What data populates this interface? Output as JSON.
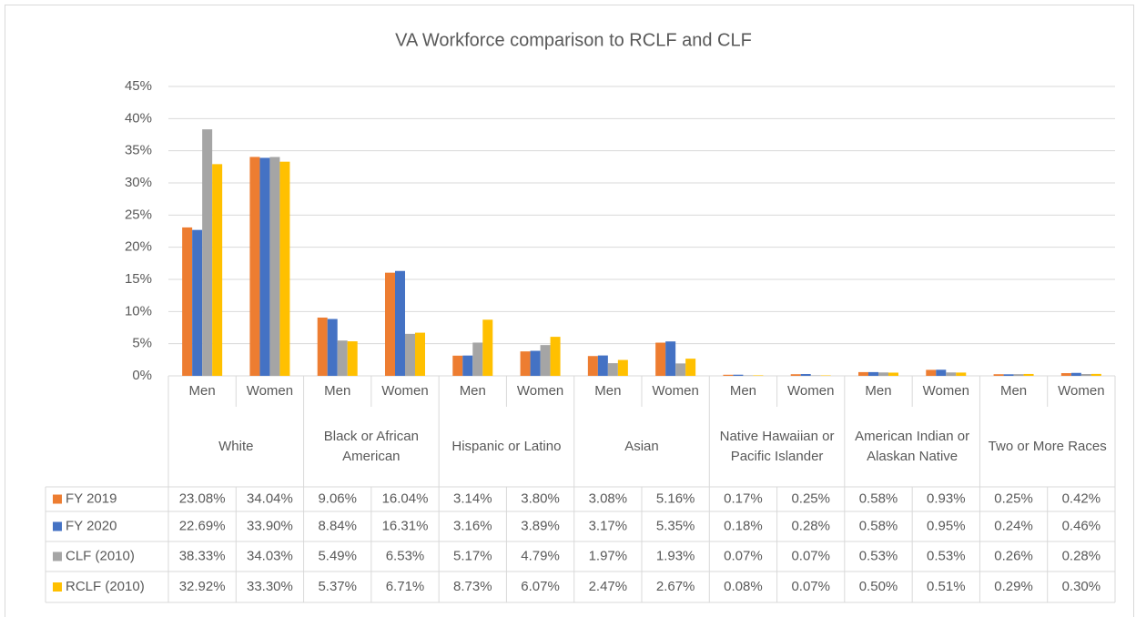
{
  "chart_data": {
    "type": "bar",
    "title": "VA Workforce comparison to RCLF and CLF",
    "categories": [
      "Men",
      "Women",
      "Men",
      "Women",
      "Men",
      "Women",
      "Men",
      "Women",
      "Men",
      "Women",
      "Men",
      "Women",
      "Men",
      "Women"
    ],
    "groups": [
      "White",
      "Black or African American",
      "Hispanic or Latino",
      "Asian",
      "Native Hawaiian or Pacific Islander",
      "American Indian or Alaskan Native",
      "Two or More Races"
    ],
    "series": [
      {
        "name": "FY 2019",
        "color": "#ed7d31",
        "values": [
          23.08,
          34.04,
          9.06,
          16.04,
          3.14,
          3.8,
          3.08,
          5.16,
          0.17,
          0.25,
          0.58,
          0.93,
          0.25,
          0.42
        ],
        "value_labels": [
          "23.08%",
          "34.04%",
          "9.06%",
          "16.04%",
          "3.14%",
          "3.80%",
          "3.08%",
          "5.16%",
          "0.17%",
          "0.25%",
          "0.58%",
          "0.93%",
          "0.25%",
          "0.42%"
        ]
      },
      {
        "name": "FY 2020",
        "color": "#4472c4",
        "values": [
          22.69,
          33.9,
          8.84,
          16.31,
          3.16,
          3.89,
          3.17,
          5.35,
          0.18,
          0.28,
          0.58,
          0.95,
          0.24,
          0.46
        ],
        "value_labels": [
          "22.69%",
          "33.90%",
          "8.84%",
          "16.31%",
          "3.16%",
          "3.89%",
          "3.17%",
          "5.35%",
          "0.18%",
          "0.28%",
          "0.58%",
          "0.95%",
          "0.24%",
          "0.46%"
        ]
      },
      {
        "name": "CLF (2010)",
        "color": "#a5a5a5",
        "values": [
          38.33,
          34.03,
          5.49,
          6.53,
          5.17,
          4.79,
          1.97,
          1.93,
          0.07,
          0.07,
          0.53,
          0.53,
          0.26,
          0.28
        ],
        "value_labels": [
          "38.33%",
          "34.03%",
          "5.49%",
          "6.53%",
          "5.17%",
          "4.79%",
          "1.97%",
          "1.93%",
          "0.07%",
          "0.07%",
          "0.53%",
          "0.53%",
          "0.26%",
          "0.28%"
        ]
      },
      {
        "name": "RCLF (2010)",
        "color": "#ffc000",
        "values": [
          32.92,
          33.3,
          5.37,
          6.71,
          8.73,
          6.07,
          2.47,
          2.67,
          0.08,
          0.07,
          0.5,
          0.51,
          0.29,
          0.3
        ],
        "value_labels": [
          "32.92%",
          "33.30%",
          "5.37%",
          "6.71%",
          "8.73%",
          "6.07%",
          "2.47%",
          "2.67%",
          "0.08%",
          "0.07%",
          "0.50%",
          "0.51%",
          "0.29%",
          "0.30%"
        ]
      }
    ],
    "ylim": [
      0,
      45
    ],
    "yticks": [
      {
        "value": 0,
        "label": "0%"
      },
      {
        "value": 5,
        "label": "5%"
      },
      {
        "value": 10,
        "label": "10%"
      },
      {
        "value": 15,
        "label": "15%"
      },
      {
        "value": 20,
        "label": "20%"
      },
      {
        "value": 25,
        "label": "25%"
      },
      {
        "value": 30,
        "label": "30%"
      },
      {
        "value": 35,
        "label": "35%"
      },
      {
        "value": 40,
        "label": "40%"
      },
      {
        "value": 45,
        "label": "45%"
      }
    ],
    "grid": true
  }
}
